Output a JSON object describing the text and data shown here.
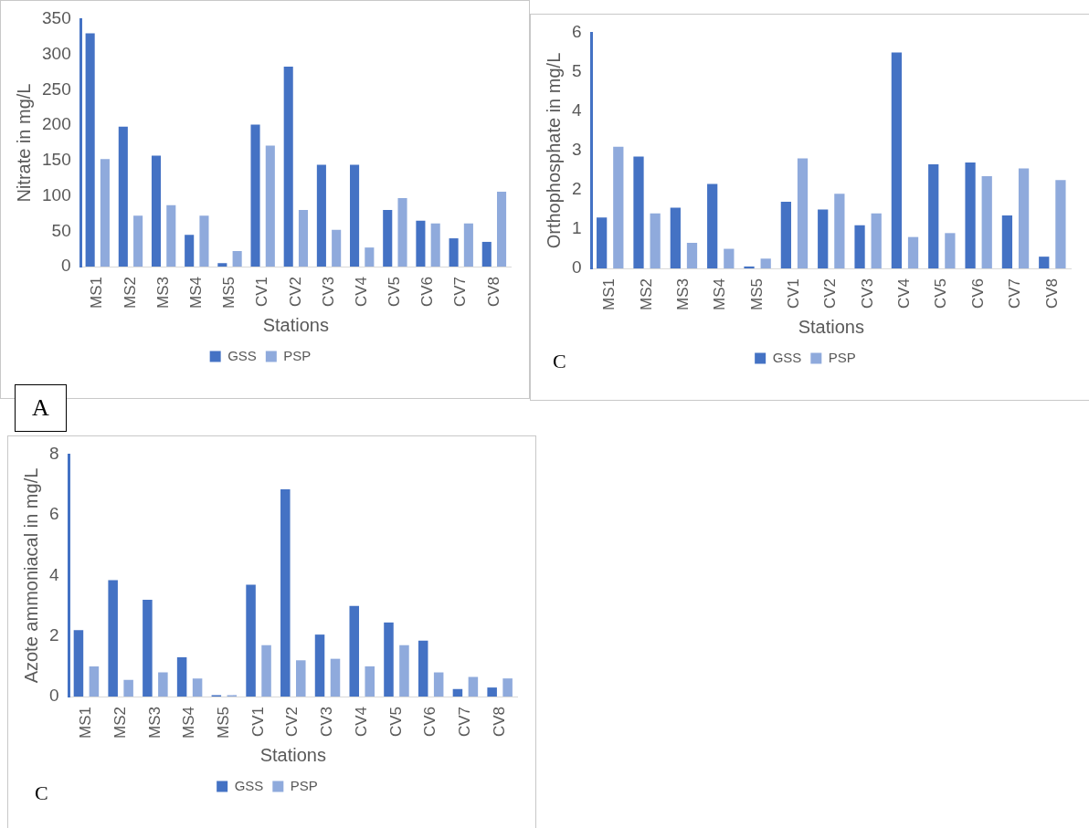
{
  "chart_data": [
    {
      "type": "bar",
      "xlabel": "Stations",
      "ylabel": "Nitrate in mg/L",
      "categories": [
        "MS1",
        "MS2",
        "MS3",
        "MS4",
        "MS5",
        "CV1",
        "CV2",
        "CV3",
        "CV4",
        "CV5",
        "CV6",
        "CV7",
        "CV8"
      ],
      "series": [
        {
          "name": "GSS",
          "color": "#4472c4",
          "values": [
            330,
            198,
            157,
            45,
            5,
            201,
            283,
            144,
            144,
            80,
            65,
            40,
            35
          ]
        },
        {
          "name": "PSP",
          "color": "#8faadc",
          "values": [
            152,
            72,
            87,
            72,
            22,
            171,
            80,
            52,
            27,
            97,
            61,
            61,
            106
          ]
        }
      ],
      "ylim": [
        0,
        350
      ],
      "yticks": [
        0,
        50,
        100,
        150,
        200,
        250,
        300,
        350
      ],
      "grid": false,
      "legend": "bottom",
      "annotations": [
        "A"
      ]
    },
    {
      "type": "bar",
      "xlabel": "Stations",
      "ylabel": "Orthophosphate in mg/L",
      "categories": [
        "MS1",
        "MS2",
        "MS3",
        "MS4",
        "MS5",
        "CV1",
        "CV2",
        "CV3",
        "CV4",
        "CV5",
        "CV6",
        "CV7",
        "CV8"
      ],
      "series": [
        {
          "name": "GSS",
          "color": "#4472c4",
          "values": [
            1.3,
            2.85,
            1.55,
            2.15,
            0.05,
            1.7,
            1.5,
            1.1,
            5.5,
            2.65,
            2.7,
            1.35,
            0.3
          ]
        },
        {
          "name": "PSP",
          "color": "#8faadc",
          "values": [
            3.1,
            1.4,
            0.65,
            0.5,
            0.25,
            2.8,
            1.9,
            1.4,
            0.8,
            0.9,
            2.35,
            2.55,
            2.25
          ]
        }
      ],
      "ylim": [
        0,
        6
      ],
      "yticks": [
        0,
        1,
        2,
        3,
        4,
        5,
        6
      ],
      "grid": false,
      "legend": "bottom",
      "annotations": [
        "C"
      ]
    },
    {
      "type": "bar",
      "xlabel": "Stations",
      "ylabel": "Azote ammoniacal in mg/L",
      "categories": [
        "MS1",
        "MS2",
        "MS3",
        "MS4",
        "MS5",
        "CV1",
        "CV2",
        "CV3",
        "CV4",
        "CV5",
        "CV6",
        "CV7",
        "CV8"
      ],
      "series": [
        {
          "name": "GSS",
          "color": "#4472c4",
          "values": [
            2.2,
            3.85,
            3.2,
            1.3,
            0.05,
            3.7,
            6.85,
            2.05,
            3.0,
            2.45,
            1.85,
            0.25,
            0.3
          ]
        },
        {
          "name": "PSP",
          "color": "#8faadc",
          "values": [
            1.0,
            0.55,
            0.8,
            0.6,
            0.05,
            1.7,
            1.2,
            1.25,
            1.0,
            1.7,
            0.8,
            0.65,
            0.6
          ]
        }
      ],
      "ylim": [
        0,
        8
      ],
      "yticks": [
        0,
        2,
        4,
        6,
        8
      ],
      "grid": false,
      "legend": "bottom",
      "annotations": [
        "C"
      ]
    }
  ]
}
